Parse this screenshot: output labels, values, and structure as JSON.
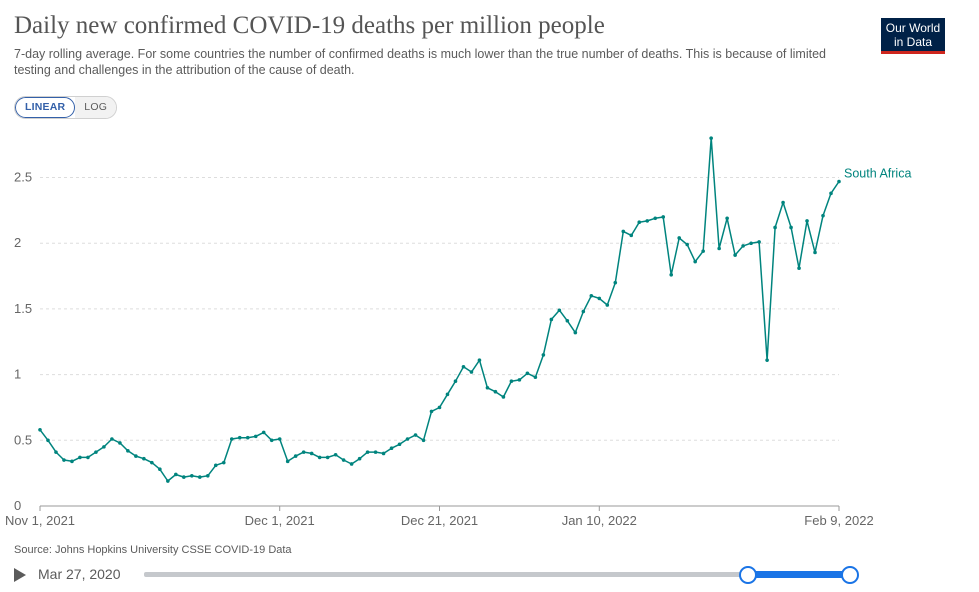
{
  "header": {
    "title": "Daily new confirmed COVID-19 deaths per million people",
    "subtitle": "7-day rolling average. For some countries the number of confirmed deaths is much lower than the true number of deaths. This is because of limited testing and challenges in the attribution of the cause of death."
  },
  "logo": {
    "line1": "Our World",
    "line2": "in Data"
  },
  "scale_toggle": {
    "linear": "LINEAR",
    "log": "LOG",
    "selected": "LINEAR"
  },
  "chart_data": {
    "type": "line",
    "title": "Daily new confirmed COVID-19 deaths per million people",
    "xlabel": "",
    "ylabel": "",
    "ylim": [
      0,
      2.9
    ],
    "yticks": [
      0,
      0.5,
      1,
      1.5,
      2,
      2.5
    ],
    "ytick_labels": [
      "0",
      "0.5",
      "1",
      "1.5",
      "2",
      "2.5"
    ],
    "xticks": [
      {
        "day": 0,
        "label": "Nov 1, 2021"
      },
      {
        "day": 30,
        "label": "Dec 1, 2021"
      },
      {
        "day": 50,
        "label": "Dec 21, 2021"
      },
      {
        "day": 70,
        "label": "Jan 10, 2022"
      },
      {
        "day": 100,
        "label": "Feb 9, 2022"
      }
    ],
    "x_start": "Nov 1, 2021",
    "x_end": "Feb 9, 2022",
    "grid": true,
    "series": [
      {
        "name": "South Africa",
        "color": "#00847e",
        "values": [
          0.58,
          0.5,
          0.41,
          0.35,
          0.34,
          0.37,
          0.37,
          0.41,
          0.45,
          0.51,
          0.48,
          0.42,
          0.38,
          0.36,
          0.33,
          0.28,
          0.19,
          0.24,
          0.22,
          0.23,
          0.22,
          0.23,
          0.31,
          0.33,
          0.51,
          0.52,
          0.52,
          0.53,
          0.56,
          0.5,
          0.51,
          0.34,
          0.38,
          0.41,
          0.4,
          0.37,
          0.37,
          0.39,
          0.35,
          0.32,
          0.36,
          0.41,
          0.41,
          0.4,
          0.44,
          0.47,
          0.51,
          0.54,
          0.5,
          0.72,
          0.75,
          0.85,
          0.95,
          1.06,
          1.02,
          1.11,
          0.9,
          0.87,
          0.83,
          0.95,
          0.96,
          1.01,
          0.98,
          1.15,
          1.42,
          1.49,
          1.41,
          1.32,
          1.48,
          1.6,
          1.58,
          1.53,
          1.7,
          2.09,
          2.06,
          2.16,
          2.17,
          2.19,
          2.2,
          1.76,
          2.04,
          1.99,
          1.86,
          1.94,
          2.8,
          1.96,
          2.19,
          1.91,
          1.98,
          2.0,
          2.01,
          1.11,
          2.12,
          2.31,
          2.12,
          1.81,
          2.17,
          1.93,
          2.21,
          2.38,
          2.47
        ]
      }
    ]
  },
  "source": "Source: Johns Hopkins University CSSE COVID-19 Data",
  "timeline": {
    "start_label": "Mar 27, 2020",
    "selection_start_fraction": 0.855,
    "selection_end_fraction": 1.0
  }
}
